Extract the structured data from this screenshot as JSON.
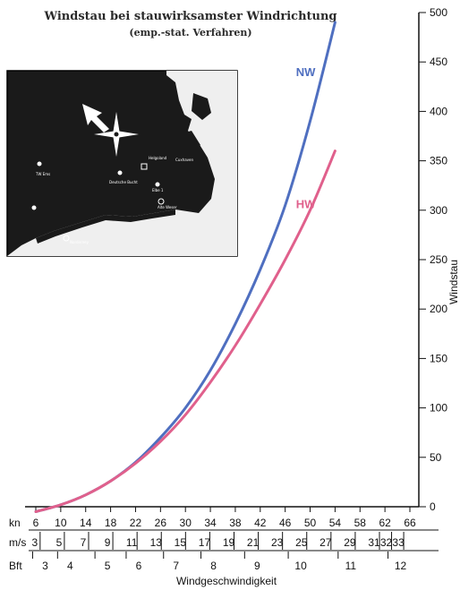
{
  "chart_data": {
    "type": "line",
    "title": "Windstau bei stauwirksamster Windrichtung",
    "subtitle": "(emp.-stat. Verfahren)",
    "ylabel": "Windstau",
    "xlabel": "Windgeschwindigkeit",
    "ylim": [
      0,
      500
    ],
    "yticks": [
      0,
      50,
      100,
      150,
      200,
      250,
      300,
      350,
      400,
      450,
      500
    ],
    "xlim": [
      6,
      68
    ],
    "x_axes": [
      {
        "unit": "kn",
        "ticks": [
          "6",
          "10",
          "14",
          "18",
          "22",
          "26",
          "30",
          "34",
          "38",
          "42",
          "46",
          "50",
          "54",
          "58",
          "62",
          "66"
        ]
      },
      {
        "unit": "m/s",
        "ticks": [
          "3",
          "5",
          "7",
          "9",
          "11",
          "13",
          "15",
          "17",
          "19",
          "21",
          "23",
          "25",
          "27",
          "29",
          "31",
          "32",
          "33"
        ]
      },
      {
        "unit": "Bft",
        "ticks": [
          "3",
          "4",
          "5",
          "6",
          "7",
          "8",
          "9",
          "10",
          "11",
          "12"
        ]
      }
    ],
    "grid": false,
    "series": [
      {
        "name": "NW",
        "color": "#4f6fc0",
        "x": [
          6,
          10,
          14,
          18,
          22,
          26,
          30,
          34,
          38,
          42,
          46,
          50,
          54
        ],
        "y": [
          -5,
          2,
          12,
          26,
          45,
          70,
          100,
          138,
          185,
          240,
          305,
          390,
          490
        ]
      },
      {
        "name": "HW",
        "color": "#e0608c",
        "x": [
          6,
          10,
          14,
          18,
          22,
          26,
          30,
          34,
          38,
          42,
          46,
          50,
          54
        ],
        "y": [
          -5,
          2,
          12,
          26,
          44,
          66,
          93,
          126,
          163,
          205,
          250,
          300,
          360
        ]
      }
    ]
  },
  "map": {
    "labels": [
      "TW Ems",
      "Deutsche Bucht",
      "Helgoland",
      "Elbe 1",
      "Alte Weser",
      "Norderney",
      "Cuxhaven"
    ]
  }
}
